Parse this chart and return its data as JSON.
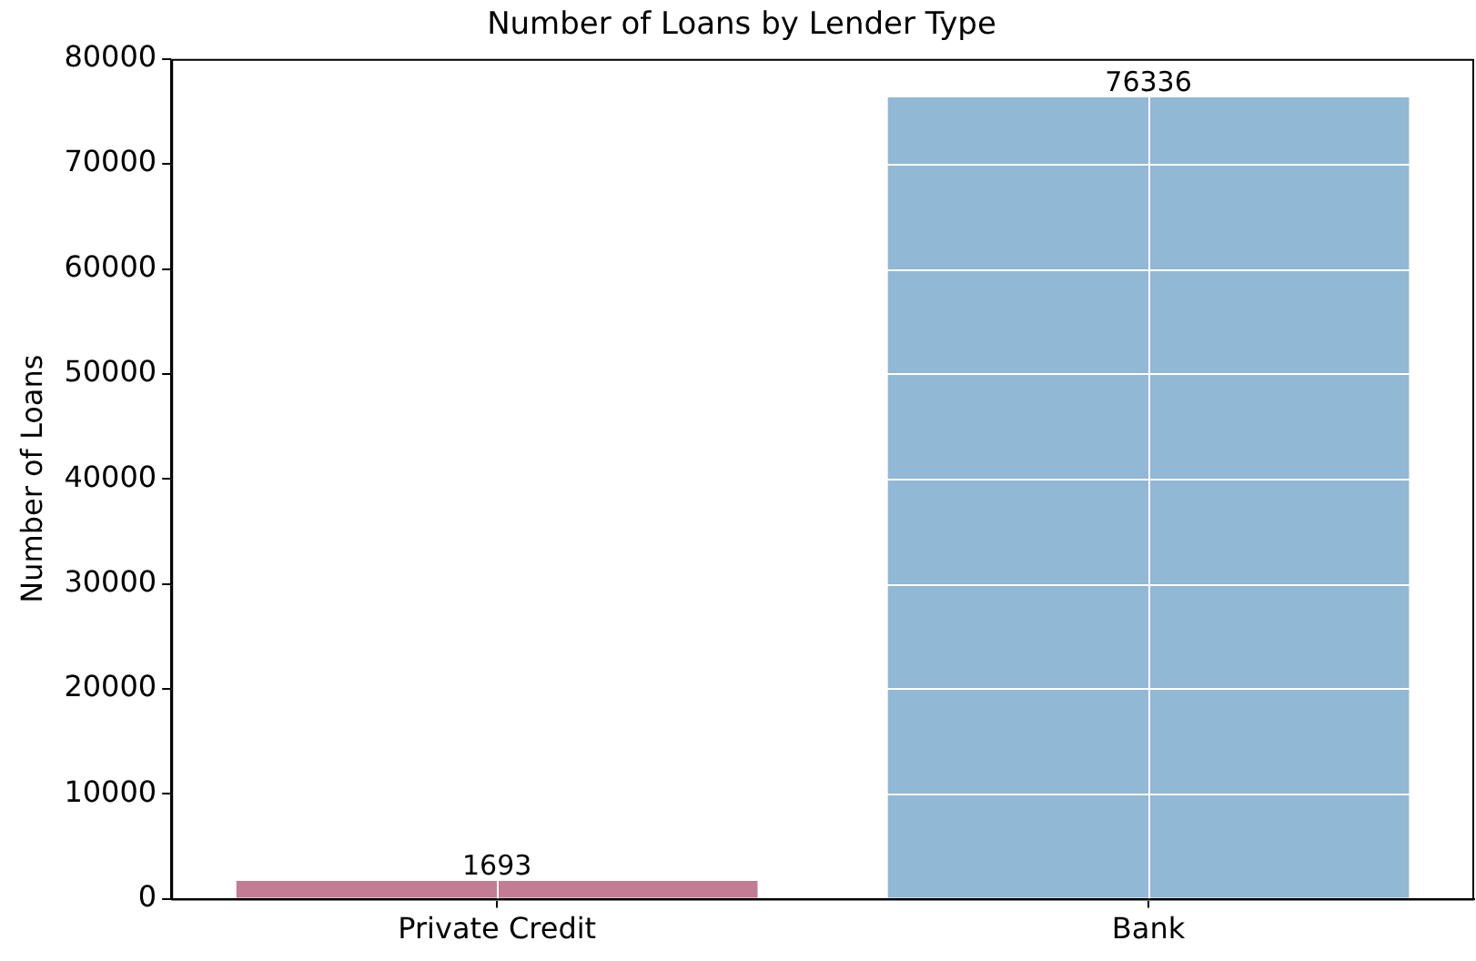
{
  "chart_data": {
    "type": "bar",
    "title": "Number of Loans by Lender Type",
    "ylabel": "Number of Loans",
    "categories": [
      "Private Credit",
      "Bank"
    ],
    "values": [
      1693,
      76336
    ],
    "colors": [
      "#c27c93",
      "#91b8d4"
    ],
    "ylim": [
      0,
      80000
    ],
    "yticks": [
      0,
      10000,
      20000,
      30000,
      40000,
      50000,
      60000,
      70000,
      80000
    ],
    "grid": true,
    "data_labels": true
  }
}
